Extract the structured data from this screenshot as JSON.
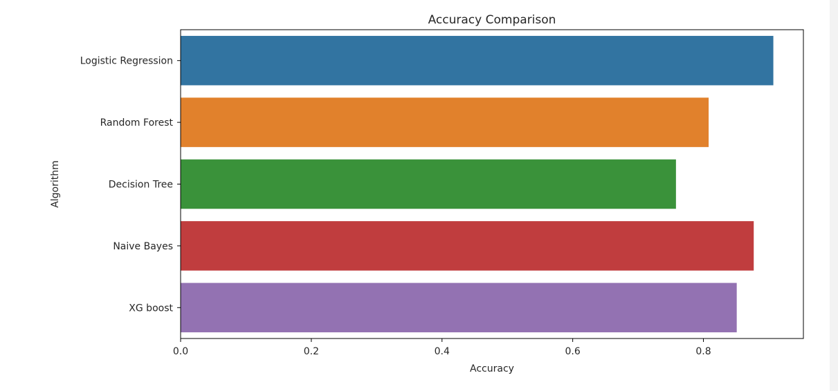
{
  "chart_data": {
    "type": "bar",
    "orientation": "horizontal",
    "title": "Accuracy Comparison",
    "xlabel": "Accuracy",
    "ylabel": "Algorithm",
    "categories": [
      "Logistic Regression",
      "Random Forest",
      "Decision Tree",
      "Naive Bayes",
      "XG boost"
    ],
    "values": [
      0.907,
      0.808,
      0.758,
      0.877,
      0.851
    ],
    "colors": [
      "#3274a1",
      "#e1812c",
      "#3a923a",
      "#c03d3e",
      "#9372b2"
    ],
    "xlim": [
      0,
      0.953
    ],
    "xticks": [
      0.0,
      0.2,
      0.4,
      0.6,
      0.8
    ],
    "xtick_labels": [
      "0.0",
      "0.2",
      "0.4",
      "0.6",
      "0.8"
    ],
    "grid": false,
    "legend": "none"
  }
}
